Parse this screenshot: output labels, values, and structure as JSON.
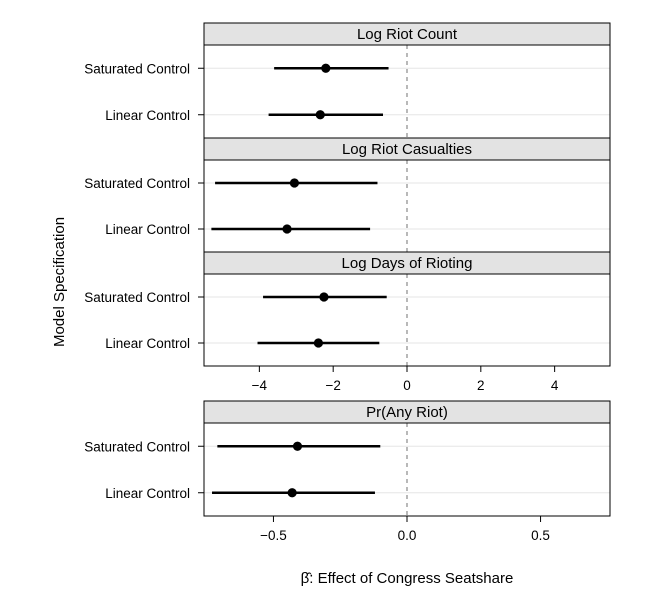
{
  "chart_data": [
    {
      "type": "scatter",
      "title": "Log Riot Count",
      "ylabel": "Model Specification",
      "categories": [
        "Saturated Control",
        "Linear Control"
      ],
      "xlim": [
        -5.5,
        5.5
      ],
      "xticks": [
        -4,
        -2,
        0,
        2,
        4
      ],
      "xticklabels": [
        "−4",
        "−2",
        "0",
        "2",
        "4"
      ],
      "show_x_axis": false,
      "reference_line": 0,
      "points": [
        {
          "label": "Saturated Control",
          "estimate": -2.2,
          "ci": [
            -3.6,
            -0.5
          ]
        },
        {
          "label": "Linear Control",
          "estimate": -2.35,
          "ci": [
            -3.75,
            -0.65
          ]
        }
      ]
    },
    {
      "type": "scatter",
      "title": "Log Riot Casualties",
      "ylabel": "Model Specification",
      "categories": [
        "Saturated Control",
        "Linear Control"
      ],
      "xlim": [
        -5.5,
        5.5
      ],
      "xticks": [
        -4,
        -2,
        0,
        2,
        4
      ],
      "xticklabels": [
        "−4",
        "−2",
        "0",
        "2",
        "4"
      ],
      "show_x_axis": false,
      "reference_line": 0,
      "points": [
        {
          "label": "Saturated Control",
          "estimate": -3.05,
          "ci": [
            -5.2,
            -0.8
          ]
        },
        {
          "label": "Linear Control",
          "estimate": -3.25,
          "ci": [
            -5.3,
            -1.0
          ]
        }
      ]
    },
    {
      "type": "scatter",
      "title": "Log Days of Rioting",
      "ylabel": "Model Specification",
      "categories": [
        "Saturated Control",
        "Linear Control"
      ],
      "xlim": [
        -5.5,
        5.5
      ],
      "xticks": [
        -4,
        -2,
        0,
        2,
        4
      ],
      "xticklabels": [
        "−4",
        "−2",
        "0",
        "2",
        "4"
      ],
      "show_x_axis": true,
      "reference_line": 0,
      "points": [
        {
          "label": "Saturated Control",
          "estimate": -2.25,
          "ci": [
            -3.9,
            -0.55
          ]
        },
        {
          "label": "Linear Control",
          "estimate": -2.4,
          "ci": [
            -4.05,
            -0.75
          ]
        }
      ]
    },
    {
      "type": "scatter",
      "title": "Pr(Any Riot)",
      "ylabel": "Model Specification",
      "xlabel": "β̂: Effect of Congress Seatshare",
      "categories": [
        "Saturated Control",
        "Linear Control"
      ],
      "xlim": [
        -0.76,
        0.76
      ],
      "xticks": [
        -0.5,
        0.0,
        0.5
      ],
      "xticklabels": [
        "−0.5",
        "0.0",
        "0.5"
      ],
      "show_x_axis": true,
      "reference_line": 0,
      "points": [
        {
          "label": "Saturated Control",
          "estimate": -0.41,
          "ci": [
            -0.71,
            -0.1
          ]
        },
        {
          "label": "Linear Control",
          "estimate": -0.43,
          "ci": [
            -0.73,
            -0.12
          ]
        }
      ]
    }
  ],
  "y_axis_title": "Model Specification",
  "x_axis_title": "β̂: Effect of Congress Seatshare"
}
